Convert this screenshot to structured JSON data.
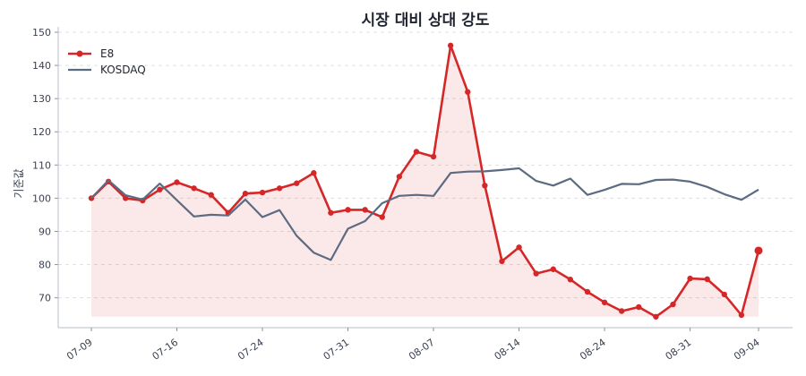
{
  "chart_data": {
    "type": "line",
    "title": "시장 대비 상대 강도",
    "xlabel": "",
    "ylabel": "기준값",
    "ylim": [
      61,
      150
    ],
    "yticks": [
      70,
      80,
      90,
      100,
      110,
      120,
      130,
      140,
      150
    ],
    "xtick_labels": [
      "07-09",
      "07-16",
      "07-24",
      "07-31",
      "08-07",
      "08-14",
      "08-24",
      "08-31",
      "09-04"
    ],
    "xtick_index": [
      0,
      5,
      10,
      15,
      20,
      25,
      30,
      35,
      39
    ],
    "x": [
      "07-09",
      "07-10",
      "07-11",
      "07-14",
      "07-15",
      "07-16",
      "07-17",
      "07-18",
      "07-21",
      "07-22",
      "07-24",
      "07-25",
      "07-28",
      "07-29",
      "07-30",
      "07-31",
      "08-01",
      "08-04",
      "08-05",
      "08-06",
      "08-07",
      "08-08",
      "08-11",
      "08-12",
      "08-13",
      "08-14",
      "08-15",
      "08-18",
      "08-19",
      "08-20",
      "08-24",
      "08-25",
      "08-26",
      "08-27",
      "08-28",
      "08-31",
      "09-01",
      "09-02",
      "09-03",
      "09-04"
    ],
    "series": [
      {
        "name": "E8",
        "color": "#d62728",
        "fill": true,
        "values": [
          100,
          105,
          100,
          99.3,
          102.6,
          104.8,
          103,
          101,
          95.6,
          101.4,
          101.7,
          103,
          104.5,
          107.6,
          95.6,
          96.5,
          96.5,
          94.3,
          106.5,
          114,
          112.5,
          146,
          132,
          103.8,
          81,
          85.2,
          77.3,
          78.6,
          75.5,
          71.8,
          68.6,
          66,
          67.2,
          64.3,
          68,
          75.8,
          75.6,
          71,
          64.8,
          84.2
        ]
      },
      {
        "name": "KOSDAQ",
        "color": "#5d6b82",
        "fill": false,
        "values": [
          100,
          105.4,
          100.9,
          99.6,
          104.4,
          99.4,
          94.5,
          95,
          94.8,
          99.6,
          94.3,
          96.4,
          88.7,
          83.6,
          81.4,
          90.8,
          93.1,
          98.5,
          100.7,
          101,
          100.7,
          107.6,
          108,
          108.1,
          108.5,
          109,
          105.2,
          103.8,
          105.9,
          101,
          102.5,
          104.3,
          104.2,
          105.5,
          105.6,
          105,
          103.4,
          101.2,
          99.5,
          102.6
        ]
      }
    ],
    "legend": "top-left",
    "grid": "horizontal-dashed"
  }
}
